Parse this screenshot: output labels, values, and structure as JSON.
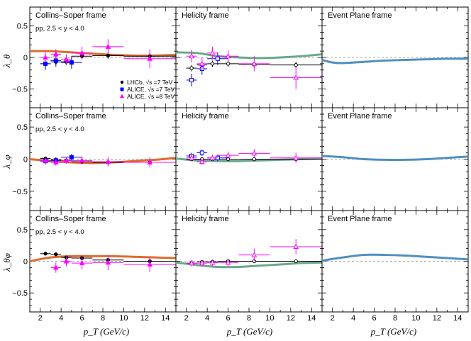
{
  "figure": {
    "xlabel": "p_T (GeV/c)",
    "row_ylabels": [
      "λ_θ",
      "λ_φ",
      "λ_θφ"
    ],
    "col_titles": [
      "Collins–Soper frame",
      "Helicity frame",
      "Event Plane frame"
    ],
    "subtitle": "pp, 2.5 < y < 4.0",
    "legend": [
      {
        "name": "LHCb, √s =7 TeV",
        "color": "#000000",
        "marker": "circle"
      },
      {
        "name": "ALICE, √s =7 TeV",
        "color": "#0000ff",
        "marker": "square"
      },
      {
        "name": "ALICE, √s =8 TeV",
        "color": "#ff00ff",
        "marker": "triangle"
      }
    ],
    "colors": {
      "cs_curve": "#e06a2c",
      "hx_curve": "#6aa88c",
      "ep_curve": "#4f8fc0",
      "lhcb": "#000000",
      "alice7": "#0000ff",
      "alice8": "#ff00ff"
    }
  },
  "chart_data": [
    {
      "type": "scatter",
      "panel": "lambda_theta_CS",
      "xlim": [
        1,
        15
      ],
      "ylim": [
        -0.8,
        0.8
      ],
      "x_ticks": [
        2,
        4,
        6,
        8,
        10,
        12,
        14
      ],
      "y_ticks": [
        -0.5,
        0,
        0.5
      ],
      "series": [
        {
          "name": "LHCb, √s =7 TeV",
          "x": [
            2.5,
            3.5,
            4.5,
            6,
            8.5,
            12.5
          ],
          "y": [
            -0.1,
            -0.07,
            -0.07,
            0.02,
            0.03,
            0.02
          ],
          "xerr": [
            0.5,
            0.5,
            0.5,
            1,
            1.5,
            2.5
          ],
          "yerr": [
            0.05,
            0.05,
            0.05,
            0.05,
            0.05,
            0.05
          ]
        },
        {
          "name": "ALICE, √s =7 TeV",
          "x": [
            2.5,
            3.5,
            5
          ],
          "y": [
            -0.1,
            -0.05,
            -0.08
          ],
          "xerr": [
            0.5,
            0.5,
            1
          ],
          "yerr": [
            0.1,
            0.1,
            0.1
          ]
        },
        {
          "name": "ALICE, √s =8 TeV",
          "x": [
            2.5,
            3.5,
            4.5,
            6,
            8.5,
            12.5
          ],
          "y": [
            0.0,
            0.05,
            -0.03,
            0.07,
            0.17,
            -0.02
          ],
          "xerr": [
            0.5,
            0.5,
            0.5,
            1,
            1.5,
            2.5
          ],
          "yerr": [
            0.08,
            0.08,
            0.08,
            0.1,
            0.12,
            0.15
          ]
        }
      ],
      "curve": {
        "x": [
          1,
          3,
          5,
          7,
          9,
          11,
          13,
          15
        ],
        "y": [
          0.1,
          0.1,
          0.08,
          0.06,
          0.04,
          0.03,
          0.03,
          0.04
        ]
      }
    },
    {
      "type": "scatter",
      "panel": "lambda_theta_HX",
      "xlim": [
        1,
        15
      ],
      "ylim": [
        -0.8,
        0.8
      ],
      "x_ticks": [
        2,
        4,
        6,
        8,
        10,
        12,
        14
      ],
      "y_ticks": [
        -0.5,
        0,
        0.5
      ],
      "series": [
        {
          "name": "LHCb, √s =7 TeV",
          "x": [
            2.5,
            3.5,
            4.5,
            6,
            8.5,
            12.5
          ],
          "y": [
            -0.17,
            -0.12,
            -0.1,
            -0.1,
            -0.11,
            -0.12
          ],
          "xerr": [
            0.5,
            0.5,
            0.5,
            1,
            1.5,
            2.5
          ],
          "yerr": [
            0.05,
            0.05,
            0.05,
            0.05,
            0.05,
            0.05
          ]
        },
        {
          "name": "ALICE, √s =7 TeV",
          "x": [
            2.5,
            3.5,
            5
          ],
          "y": [
            -0.36,
            -0.18,
            -0.02
          ],
          "xerr": [
            0.5,
            0.5,
            1
          ],
          "yerr": [
            0.1,
            0.1,
            0.1
          ]
        },
        {
          "name": "ALICE, √s =8 TeV",
          "x": [
            2.5,
            3.5,
            4.5,
            6,
            8.5,
            12.5
          ],
          "y": [
            0.02,
            -0.1,
            0.07,
            0.02,
            -0.1,
            -0.32
          ],
          "xerr": [
            0.5,
            0.5,
            0.5,
            1,
            1.5,
            2.5
          ],
          "yerr": [
            0.1,
            0.1,
            0.1,
            0.1,
            0.12,
            0.18
          ]
        }
      ],
      "curve": {
        "x": [
          1,
          3,
          5,
          7,
          9,
          11,
          13,
          15
        ],
        "y": [
          0.08,
          0.07,
          0.02,
          0.0,
          -0.01,
          0.0,
          0.02,
          0.05
        ]
      }
    },
    {
      "type": "line",
      "panel": "lambda_theta_EP",
      "xlim": [
        1,
        15
      ],
      "ylim": [
        -0.8,
        0.8
      ],
      "x_ticks": [
        2,
        4,
        6,
        8,
        10,
        12,
        14
      ],
      "y_ticks": [
        -0.5,
        0,
        0.5
      ],
      "series": [],
      "curve": {
        "x": [
          1,
          2,
          3,
          5,
          7,
          9,
          11,
          13,
          15
        ],
        "y": [
          -0.04,
          -0.08,
          -0.09,
          -0.07,
          -0.05,
          -0.04,
          -0.03,
          -0.02,
          -0.02
        ]
      }
    },
    {
      "type": "scatter",
      "panel": "lambda_phi_CS",
      "xlim": [
        1,
        15
      ],
      "ylim": [
        -0.8,
        0.8
      ],
      "x_ticks": [
        2,
        4,
        6,
        8,
        10,
        12,
        14
      ],
      "y_ticks": [
        -0.5,
        0,
        0.5
      ],
      "series": [
        {
          "name": "LHCb, √s =7 TeV",
          "x": [
            2.5,
            3.5,
            4.5,
            6,
            8.5,
            12.5
          ],
          "y": [
            0.01,
            -0.01,
            -0.02,
            -0.04,
            -0.05,
            -0.05
          ],
          "xerr": [
            0.5,
            0.5,
            0.5,
            1,
            1.5,
            2.5
          ],
          "yerr": [
            0.03,
            0.03,
            0.03,
            0.03,
            0.03,
            0.03
          ]
        },
        {
          "name": "ALICE, √s =7 TeV",
          "x": [
            2.5,
            3.5,
            5
          ],
          "y": [
            -0.03,
            -0.02,
            0.03
          ],
          "xerr": [
            0.5,
            0.5,
            1
          ],
          "yerr": [
            0.05,
            0.05,
            0.05
          ]
        },
        {
          "name": "ALICE, √s =8 TeV",
          "x": [
            2.5,
            3.5,
            4.5,
            6,
            8.5,
            12.5
          ],
          "y": [
            -0.02,
            -0.05,
            -0.02,
            -0.02,
            -0.04,
            -0.05
          ],
          "xerr": [
            0.5,
            0.5,
            0.5,
            1,
            1.5,
            2.5
          ],
          "yerr": [
            0.05,
            0.05,
            0.05,
            0.06,
            0.07,
            0.08
          ]
        }
      ],
      "curve": {
        "x": [
          1,
          3,
          5,
          7,
          9,
          11,
          13,
          15
        ],
        "y": [
          0.0,
          -0.03,
          -0.05,
          -0.06,
          -0.05,
          -0.03,
          -0.01,
          0.02
        ]
      }
    },
    {
      "type": "scatter",
      "panel": "lambda_phi_HX",
      "xlim": [
        1,
        15
      ],
      "ylim": [
        -0.8,
        0.8
      ],
      "x_ticks": [
        2,
        4,
        6,
        8,
        10,
        12,
        14
      ],
      "y_ticks": [
        -0.5,
        0,
        0.5
      ],
      "series": [
        {
          "name": "LHCb, √s =7 TeV",
          "x": [
            2.5,
            3.5,
            4.5,
            6,
            8.5,
            12.5
          ],
          "y": [
            0.0,
            0.0,
            0.0,
            0.0,
            0.0,
            0.0
          ],
          "xerr": [
            0.5,
            0.5,
            0.5,
            1,
            1.5,
            2.5
          ],
          "yerr": [
            0.02,
            0.02,
            0.02,
            0.02,
            0.02,
            0.02
          ]
        },
        {
          "name": "ALICE, √s =7 TeV",
          "x": [
            2.5,
            3.5,
            5
          ],
          "y": [
            0.05,
            0.1,
            0.02
          ],
          "xerr": [
            0.5,
            0.5,
            1
          ],
          "yerr": [
            0.05,
            0.05,
            0.05
          ]
        },
        {
          "name": "ALICE, √s =8 TeV",
          "x": [
            2.5,
            3.5,
            4.5,
            6,
            8.5,
            12.5
          ],
          "y": [
            0.02,
            -0.04,
            0.02,
            0.06,
            0.09,
            0.02
          ],
          "xerr": [
            0.5,
            0.5,
            0.5,
            1,
            1.5,
            2.5
          ],
          "yerr": [
            0.05,
            0.05,
            0.05,
            0.06,
            0.07,
            0.08
          ]
        }
      ],
      "curve": {
        "x": [
          1,
          3,
          5,
          7,
          9,
          11,
          13,
          15
        ],
        "y": [
          0.01,
          -0.02,
          -0.03,
          -0.03,
          -0.02,
          -0.01,
          0.0,
          0.01
        ]
      }
    },
    {
      "type": "line",
      "panel": "lambda_phi_EP",
      "xlim": [
        1,
        15
      ],
      "ylim": [
        -0.8,
        0.8
      ],
      "x_ticks": [
        2,
        4,
        6,
        8,
        10,
        12,
        14
      ],
      "y_ticks": [
        -0.5,
        0,
        0.5
      ],
      "series": [],
      "curve": {
        "x": [
          1,
          3,
          5,
          7,
          9,
          11,
          13,
          15
        ],
        "y": [
          0.05,
          0.03,
          0.0,
          -0.01,
          -0.01,
          0.0,
          0.02,
          0.04
        ]
      }
    },
    {
      "type": "scatter",
      "panel": "lambda_thetaphi_CS",
      "xlim": [
        1,
        15
      ],
      "ylim": [
        -0.8,
        0.8
      ],
      "x_ticks": [
        2,
        4,
        6,
        8,
        10,
        12,
        14
      ],
      "y_ticks": [
        -0.5,
        0,
        0.5
      ],
      "series": [
        {
          "name": "LHCb, √s =7 TeV",
          "x": [
            2.5,
            3.5,
            4.5,
            6,
            8.5,
            12.5
          ],
          "y": [
            0.12,
            0.11,
            0.06,
            0.05,
            0.02,
            0.0
          ],
          "xerr": [
            0.5,
            0.5,
            0.5,
            1,
            1.5,
            2.5
          ],
          "yerr": [
            0.03,
            0.03,
            0.03,
            0.03,
            0.03,
            0.03
          ]
        },
        {
          "name": "ALICE, √s =8 TeV",
          "x": [
            3.5,
            4.5,
            6,
            8.5,
            12.5
          ],
          "y": [
            -0.1,
            0.0,
            -0.03,
            -0.02,
            -0.05
          ],
          "xerr": [
            0.5,
            0.5,
            1,
            1.5,
            2.5
          ],
          "yerr": [
            0.08,
            0.08,
            0.1,
            0.12,
            0.12
          ]
        }
      ],
      "curve": {
        "x": [
          1,
          3,
          5,
          7,
          9,
          11,
          13,
          15
        ],
        "y": [
          0.0,
          0.06,
          0.08,
          0.08,
          0.08,
          0.07,
          0.06,
          0.05
        ]
      }
    },
    {
      "type": "scatter",
      "panel": "lambda_thetaphi_HX",
      "xlim": [
        1,
        15
      ],
      "ylim": [
        -0.8,
        0.8
      ],
      "x_ticks": [
        2,
        4,
        6,
        8,
        10,
        12,
        14
      ],
      "y_ticks": [
        -0.5,
        0,
        0.5
      ],
      "series": [
        {
          "name": "LHCb, √s =7 TeV",
          "x": [
            2.5,
            3.5,
            4.5,
            6,
            8.5,
            12.5
          ],
          "y": [
            -0.03,
            -0.01,
            -0.01,
            0.0,
            0.0,
            0.0
          ],
          "xerr": [
            0.5,
            0.5,
            0.5,
            1,
            1.5,
            2.5
          ],
          "yerr": [
            0.02,
            0.02,
            0.02,
            0.02,
            0.02,
            0.02
          ]
        },
        {
          "name": "ALICE, √s =8 TeV",
          "x": [
            2.5,
            3.5,
            4.5,
            6,
            8.5,
            12.5
          ],
          "y": [
            -0.03,
            -0.03,
            -0.02,
            -0.02,
            0.1,
            0.23
          ],
          "xerr": [
            0.5,
            0.5,
            0.5,
            1,
            1.5,
            2.5
          ],
          "yerr": [
            0.05,
            0.05,
            0.05,
            0.06,
            0.1,
            0.12
          ]
        }
      ],
      "curve": {
        "x": [
          1,
          3,
          5,
          7,
          9,
          11,
          13,
          15
        ],
        "y": [
          -0.02,
          -0.06,
          -0.09,
          -0.09,
          -0.07,
          -0.05,
          -0.03,
          -0.02
        ]
      }
    },
    {
      "type": "line",
      "panel": "lambda_thetaphi_EP",
      "xlim": [
        1,
        15
      ],
      "ylim": [
        -0.8,
        0.8
      ],
      "x_ticks": [
        2,
        4,
        6,
        8,
        10,
        12,
        14
      ],
      "y_ticks": [
        -0.5,
        0,
        0.5
      ],
      "series": [],
      "curve": {
        "x": [
          1,
          3,
          5,
          7,
          9,
          11,
          13,
          15
        ],
        "y": [
          0.01,
          0.06,
          0.1,
          0.1,
          0.09,
          0.07,
          0.05,
          0.03
        ]
      }
    }
  ]
}
